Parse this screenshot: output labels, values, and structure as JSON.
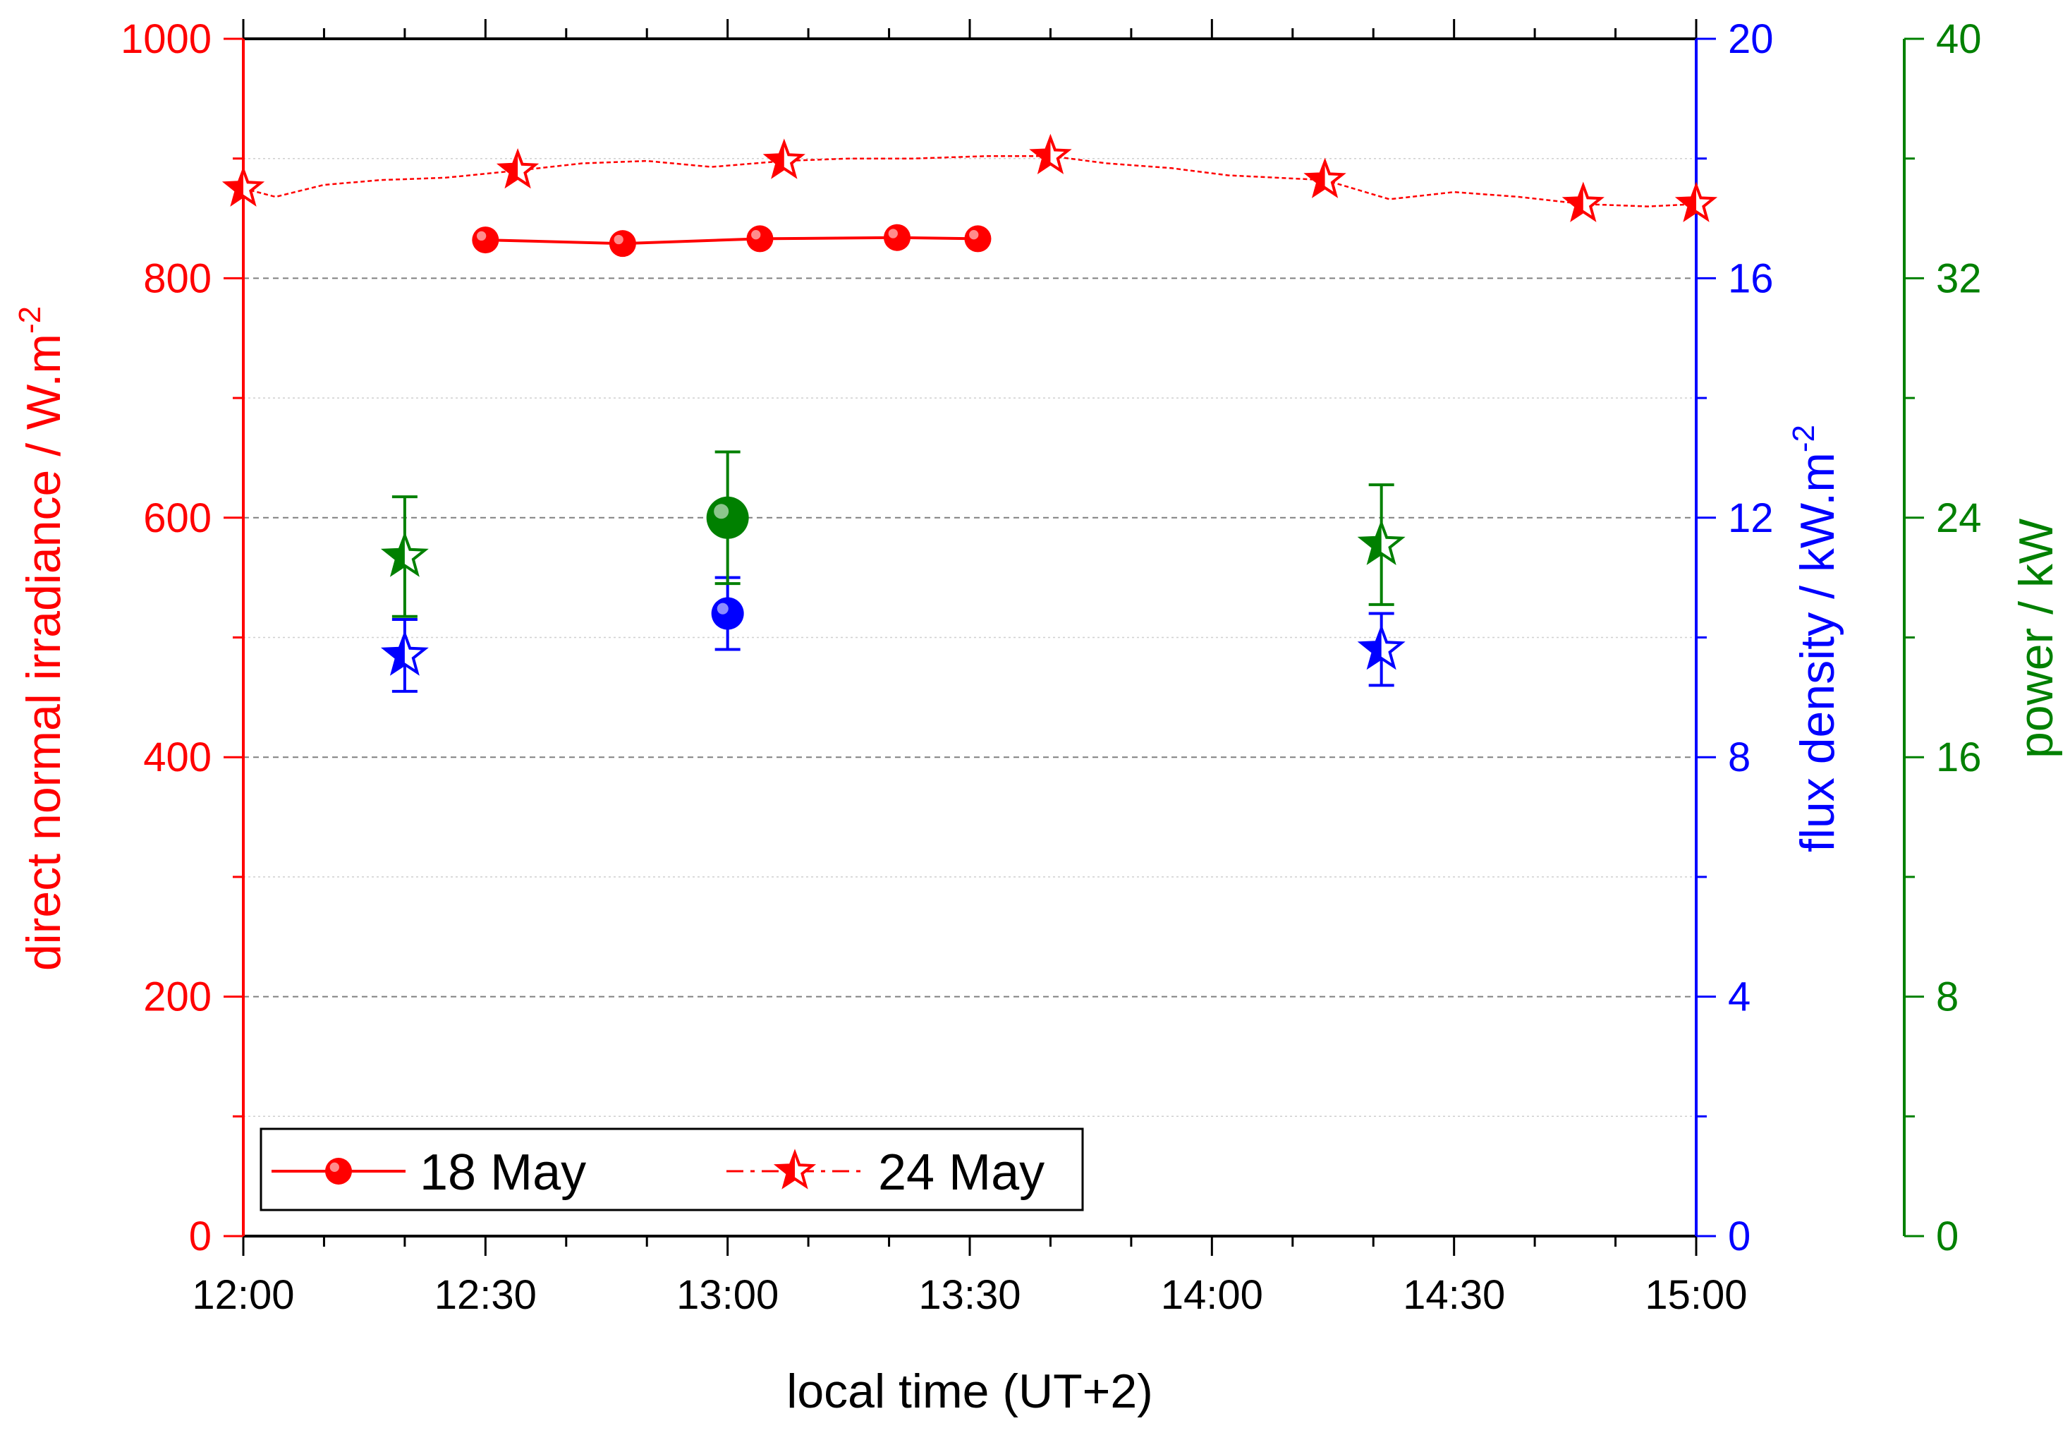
{
  "chart_data": {
    "type": "scatter",
    "xlabel": "local time (UT+2)",
    "x_range": [
      "12:00",
      "15:00"
    ],
    "x_ticks": [
      "12:00",
      "12:30",
      "13:00",
      "13:30",
      "14:00",
      "14:30",
      "15:00"
    ],
    "axes": {
      "left": {
        "label": "direct normal irradiance / W.m",
        "label_sup": "-2",
        "range": [
          0,
          1000
        ],
        "ticks": [
          "0",
          "200",
          "400",
          "600",
          "800",
          "1000"
        ],
        "color": "#ff0000"
      },
      "right_flux": {
        "label": "flux density / kW.m",
        "label_sup": "-2",
        "range": [
          0,
          20
        ],
        "ticks": [
          "0",
          "4",
          "8",
          "12",
          "16",
          "20"
        ],
        "color": "#0000ff"
      },
      "right_power": {
        "label": "power / kW",
        "range": [
          0,
          40
        ],
        "ticks": [
          "0",
          "8",
          "16",
          "24",
          "32",
          "40"
        ],
        "color": "#008000"
      }
    },
    "grid": "horizontal dashed",
    "legend_position": "bottom-left",
    "legend": [
      {
        "name": "18 May",
        "marker": "circle",
        "line": "solid"
      },
      {
        "name": "24 May",
        "marker": "star",
        "line": "dash-dot"
      }
    ],
    "series": [
      {
        "name": "18 May",
        "quantity": "direct normal irradiance",
        "axis": "left",
        "color": "#ff0000",
        "marker": "circle",
        "line": "solid",
        "x": [
          "12:30",
          "12:47",
          "13:04",
          "13:21",
          "13:31"
        ],
        "y": [
          832,
          829,
          833,
          834,
          833
        ]
      },
      {
        "name": "24 May",
        "quantity": "direct normal irradiance",
        "axis": "left",
        "color": "#ff0000",
        "marker": "star",
        "line": "dashed",
        "x": [
          "12:00",
          "12:04",
          "12:10",
          "12:17",
          "12:25",
          "12:34",
          "12:42",
          "12:50",
          "12:58",
          "13:07",
          "13:15",
          "13:23",
          "13:32",
          "13:40",
          "13:47",
          "13:55",
          "14:02",
          "14:14",
          "14:22",
          "14:30",
          "14:38",
          "14:46",
          "14:54",
          "15:00"
        ],
        "y": [
          875,
          868,
          878,
          882,
          884,
          890,
          896,
          898,
          893,
          898,
          900,
          900,
          902,
          902,
          896,
          892,
          886,
          882,
          866,
          872,
          868,
          862,
          860,
          862
        ],
        "markers_at": [
          "12:00",
          "12:34",
          "13:07",
          "13:40",
          "14:14",
          "14:46",
          "15:00"
        ]
      },
      {
        "name": "18 May",
        "quantity": "flux density",
        "axis": "right_flux",
        "color": "#0000ff",
        "marker": "circle",
        "x": [
          "13:00"
        ],
        "y": [
          10.4
        ],
        "err": [
          0.6
        ]
      },
      {
        "name": "24 May",
        "quantity": "flux density",
        "axis": "right_flux",
        "color": "#0000ff",
        "marker": "star",
        "x": [
          "12:20",
          "14:21"
        ],
        "y": [
          9.7,
          9.8
        ],
        "err": [
          0.6,
          0.6
        ]
      },
      {
        "name": "18 May",
        "quantity": "power",
        "axis": "right_power",
        "color": "#008000",
        "marker": "circle",
        "x": [
          "13:00"
        ],
        "y": [
          24.0
        ],
        "err": [
          2.2
        ]
      },
      {
        "name": "24 May",
        "quantity": "power",
        "axis": "right_power",
        "color": "#008000",
        "marker": "star",
        "x": [
          "12:20",
          "14:21"
        ],
        "y": [
          22.7,
          23.1
        ],
        "err": [
          2.0,
          2.0
        ]
      }
    ]
  }
}
